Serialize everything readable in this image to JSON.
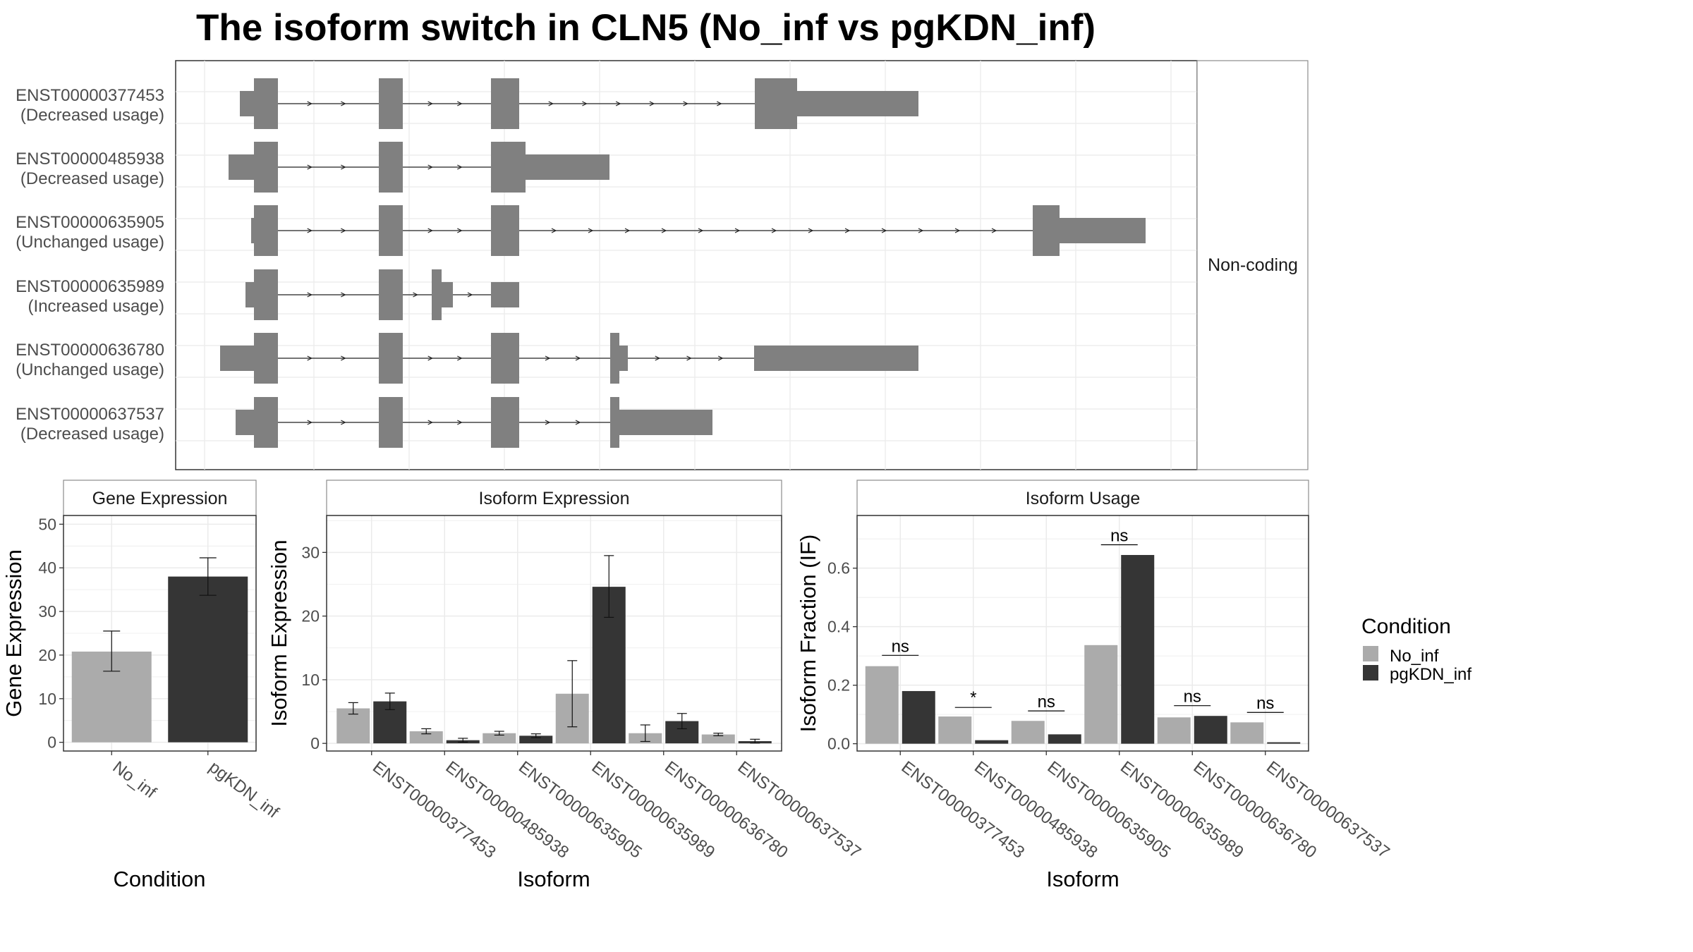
{
  "title": "The isoform switch in CLN5 (No_inf vs pgKDN_inf)",
  "colors": {
    "no_inf": "#ababab",
    "pgkdn_inf": "#353535",
    "transcript": "#808080",
    "grid": "#ebebeb",
    "panel_border": "#333333",
    "strip_border": "#8c8c8c"
  },
  "structure": {
    "strip_label": "Non-coding",
    "transcripts": [
      {
        "id": "ENST00000377453",
        "usage": "(Decreased usage)"
      },
      {
        "id": "ENST00000485938",
        "usage": "(Decreased usage)"
      },
      {
        "id": "ENST00000635905",
        "usage": "(Unchanged usage)"
      },
      {
        "id": "ENST00000635989",
        "usage": "(Increased usage)"
      },
      {
        "id": "ENST00000636780",
        "usage": "(Unchanged usage)"
      },
      {
        "id": "ENST00000637537",
        "usage": "(Decreased usage)"
      }
    ]
  },
  "legend": {
    "title": "Condition",
    "items": [
      "No_inf",
      "pgKDN_inf"
    ]
  },
  "chart_data": [
    {
      "type": "bar",
      "title": "Gene Expression",
      "xlabel": "Condition",
      "ylabel": "Gene Expression",
      "categories": [
        "No_inf",
        "pgKDN_inf"
      ],
      "values": [
        20.8,
        38.0
      ],
      "errors": [
        [
          16.3,
          25.5
        ],
        [
          33.7,
          42.3
        ]
      ],
      "ylim": [
        -2,
        52
      ],
      "yticks": [
        0,
        10,
        20,
        30,
        40,
        50
      ]
    },
    {
      "type": "bar",
      "title": "Isoform Expression",
      "xlabel": "Isoform",
      "ylabel": "Isoform Expression",
      "categories": [
        "ENST00000377453",
        "ENST00000485938",
        "ENST00000635905",
        "ENST00000635989",
        "ENST00000636780",
        "ENST00000637537"
      ],
      "series": [
        {
          "name": "No_inf",
          "values": [
            5.5,
            1.9,
            1.6,
            7.8,
            1.6,
            1.4
          ],
          "errors": [
            [
              4.6,
              6.4
            ],
            [
              1.5,
              2.3
            ],
            [
              1.3,
              1.9
            ],
            [
              2.6,
              13.0
            ],
            [
              0.3,
              2.9
            ],
            [
              1.2,
              1.6
            ]
          ]
        },
        {
          "name": "pgKDN_inf",
          "values": [
            6.6,
            0.5,
            1.2,
            24.6,
            3.5,
            0.35
          ],
          "errors": [
            [
              5.3,
              7.9
            ],
            [
              0.2,
              0.8
            ],
            [
              0.9,
              1.5
            ],
            [
              19.8,
              29.5
            ],
            [
              2.3,
              4.7
            ],
            [
              0.05,
              0.65
            ]
          ]
        }
      ],
      "ylim": [
        -1.2,
        35.8
      ],
      "yticks": [
        0,
        10,
        20,
        30
      ]
    },
    {
      "type": "bar",
      "title": "Isoform Usage",
      "xlabel": "Isoform",
      "ylabel": "Isoform Fraction (IF)",
      "categories": [
        "ENST00000377453",
        "ENST00000485938",
        "ENST00000635905",
        "ENST00000635989",
        "ENST00000636780",
        "ENST00000637537"
      ],
      "series": [
        {
          "name": "No_inf",
          "values": [
            0.265,
            0.093,
            0.078,
            0.337,
            0.09,
            0.073
          ]
        },
        {
          "name": "pgKDN_inf",
          "values": [
            0.18,
            0.012,
            0.032,
            0.645,
            0.095,
            0.005
          ]
        }
      ],
      "significance": [
        "ns",
        "*",
        "ns",
        "ns",
        "ns",
        "ns"
      ],
      "sig_heights": [
        0.302,
        0.124,
        0.112,
        0.68,
        0.13,
        0.107
      ],
      "ylim": [
        -0.025,
        0.78
      ],
      "yticks": [
        0.0,
        0.2,
        0.4,
        0.6
      ]
    }
  ]
}
